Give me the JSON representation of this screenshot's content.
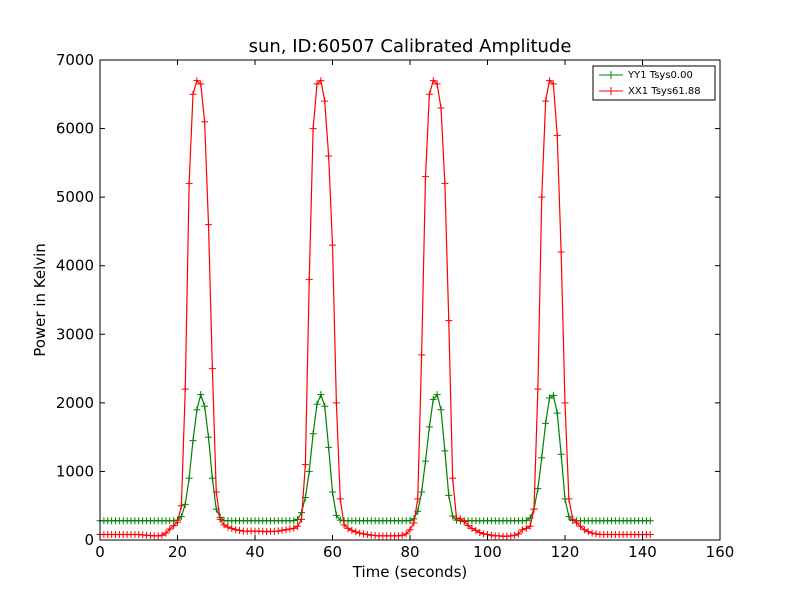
{
  "chart_data": {
    "type": "line",
    "title": "sun, ID:60507 Calibrated Amplitude",
    "xlabel": "Time (seconds)",
    "ylabel": "Power in Kelvin",
    "xlim": [
      0,
      160
    ],
    "ylim": [
      0,
      7000
    ],
    "xticks": [
      0,
      20,
      40,
      60,
      80,
      100,
      120,
      140,
      160
    ],
    "yticks": [
      0,
      1000,
      2000,
      3000,
      4000,
      5000,
      6000,
      7000
    ],
    "xtick_labels": [
      "0",
      "20",
      "40",
      "60",
      "80",
      "100",
      "120",
      "140",
      "160"
    ],
    "ytick_labels": [
      "0",
      "1000",
      "2000",
      "3000",
      "4000",
      "5000",
      "6000",
      "7000"
    ],
    "grid": false,
    "legend_position": "top-right",
    "x_start": 0,
    "x_step": 1,
    "series": [
      {
        "name": "YY1 Tsys0.00",
        "color": "#008000",
        "marker": "plus",
        "values": [
          280,
          280,
          280,
          280,
          280,
          280,
          280,
          280,
          280,
          280,
          280,
          280,
          280,
          280,
          280,
          280,
          280,
          280,
          280,
          282,
          290,
          340,
          520,
          900,
          1450,
          1900,
          2120,
          1950,
          1500,
          900,
          450,
          330,
          285,
          280,
          280,
          280,
          280,
          280,
          280,
          280,
          280,
          280,
          280,
          280,
          280,
          280,
          280,
          280,
          280,
          280,
          282,
          300,
          400,
          620,
          1000,
          1550,
          1980,
          2120,
          1950,
          1350,
          700,
          360,
          290,
          280,
          280,
          280,
          280,
          280,
          280,
          280,
          280,
          280,
          280,
          280,
          280,
          280,
          280,
          280,
          280,
          280,
          282,
          310,
          420,
          700,
          1150,
          1650,
          2050,
          2120,
          1900,
          1300,
          650,
          350,
          290,
          280,
          280,
          280,
          280,
          280,
          280,
          280,
          280,
          280,
          280,
          280,
          280,
          280,
          280,
          280,
          280,
          280,
          283,
          320,
          450,
          750,
          1200,
          1700,
          2070,
          2110,
          1850,
          1250,
          600,
          340,
          285,
          280,
          280,
          280,
          280,
          280,
          280,
          280,
          280,
          280,
          280,
          280,
          280,
          280,
          280,
          280,
          280,
          280,
          280,
          280,
          280
        ]
      },
      {
        "name": "XX1 Tsys61.88",
        "color": "#ff0000",
        "marker": "plus",
        "values": [
          80,
          80,
          80,
          80,
          80,
          80,
          80,
          80,
          80,
          80,
          80,
          75,
          70,
          65,
          60,
          60,
          70,
          100,
          160,
          210,
          260,
          500,
          2200,
          5200,
          6500,
          6700,
          6650,
          6100,
          4600,
          2500,
          700,
          300,
          220,
          190,
          170,
          150,
          140,
          130,
          130,
          130,
          130,
          130,
          125,
          120,
          125,
          125,
          130,
          140,
          150,
          160,
          170,
          200,
          300,
          1100,
          3800,
          6000,
          6650,
          6700,
          6400,
          5600,
          4300,
          2000,
          600,
          220,
          170,
          140,
          120,
          100,
          90,
          80,
          70,
          65,
          60,
          60,
          60,
          60,
          60,
          60,
          70,
          90,
          150,
          250,
          600,
          2700,
          5300,
          6500,
          6700,
          6650,
          6300,
          5200,
          3200,
          900,
          320,
          310,
          270,
          210,
          170,
          140,
          110,
          90,
          80,
          70,
          60,
          60,
          55,
          55,
          60,
          70,
          90,
          150,
          170,
          200,
          450,
          2200,
          5000,
          6400,
          6700,
          6650,
          5900,
          4200,
          2000,
          600,
          300,
          250,
          200,
          150,
          120,
          100,
          90,
          80,
          80,
          80,
          80,
          80,
          80,
          80,
          80,
          80,
          80,
          80,
          80,
          80,
          80
        ]
      }
    ]
  }
}
